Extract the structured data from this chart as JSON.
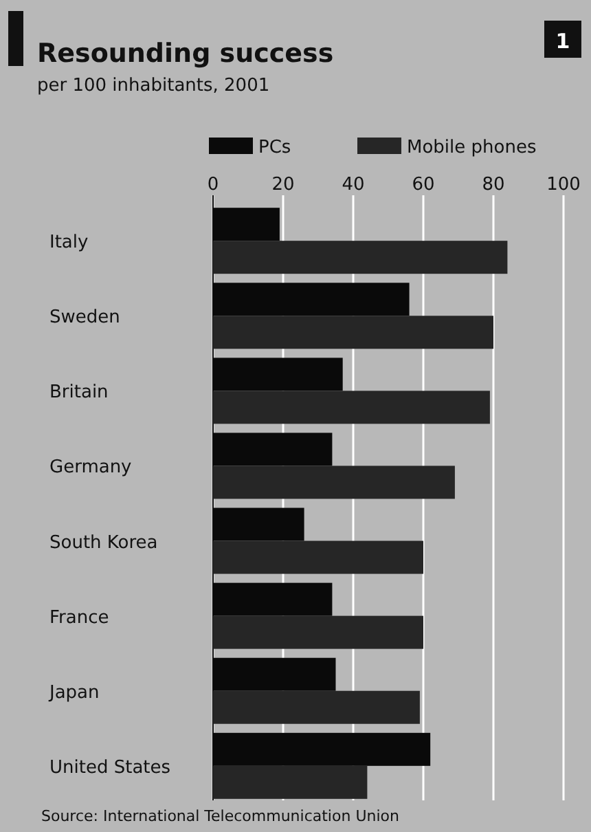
{
  "chart_data": {
    "type": "bar",
    "orientation": "horizontal",
    "title": "Resounding success",
    "subtitle": "per 100 inhabitants, 2001",
    "categories": [
      "Italy",
      "Sweden",
      "Britain",
      "Germany",
      "South Korea",
      "France",
      "Japan",
      "United States"
    ],
    "series": [
      {
        "name": "PCs",
        "color": "#0a0a0a",
        "values": [
          19,
          56,
          37,
          34,
          26,
          34,
          35,
          62
        ]
      },
      {
        "name": "Mobile phones",
        "color": "#262626",
        "values": [
          84,
          80,
          79,
          69,
          60,
          60,
          59,
          44
        ]
      }
    ],
    "xlim": [
      0,
      100
    ],
    "xticks": [
      0,
      20,
      40,
      60,
      80,
      100
    ],
    "grid": "x",
    "legend": "top",
    "annotations": [
      "1",
      "Source: International Telecommunication Union"
    ]
  }
}
